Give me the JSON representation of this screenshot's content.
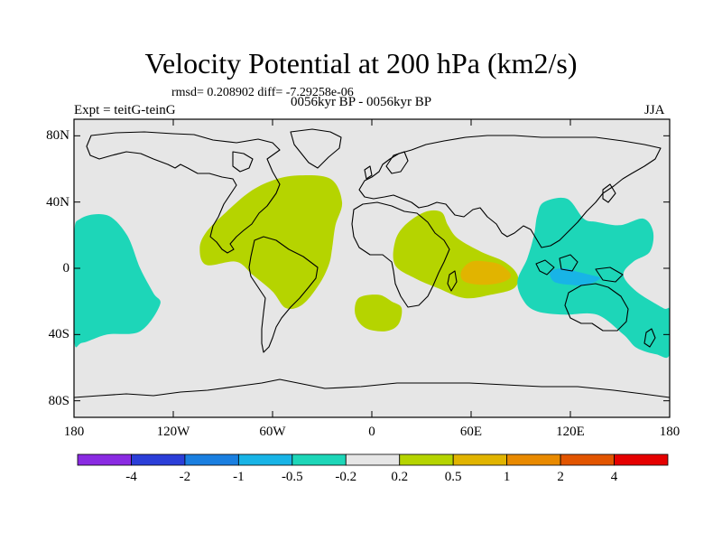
{
  "chart_data": {
    "type": "heatmap",
    "title": "Velocity Potential at 200 hPa (km2/s)",
    "stats": "rmsd= 0.208902 diff= -7.29258e-06",
    "experiment": "Expt = teitG-teinG",
    "period": "0056kyr BP - 0056kyr BP",
    "season": "JJA",
    "x_range": [
      -180,
      180
    ],
    "y_range": [
      -90,
      90
    ],
    "y_ticks": [
      {
        "value": 80,
        "label": "80N"
      },
      {
        "value": 40,
        "label": "40N"
      },
      {
        "value": 0,
        "label": "0"
      },
      {
        "value": -40,
        "label": "40S"
      },
      {
        "value": -80,
        "label": "80S"
      }
    ],
    "x_ticks": [
      {
        "value": -180,
        "label": "180"
      },
      {
        "value": -120,
        "label": "120W"
      },
      {
        "value": -60,
        "label": "60W"
      },
      {
        "value": 0,
        "label": "0"
      },
      {
        "value": 60,
        "label": "60E"
      },
      {
        "value": 120,
        "label": "120E"
      },
      {
        "value": 180,
        "label": "180"
      }
    ],
    "colorbar": {
      "colors": [
        "#8a2be2",
        "#2b3ed8",
        "#1a7fe0",
        "#18b4e6",
        "#1dd6b8",
        "#e6e6e6",
        "#b5d400",
        "#e1b400",
        "#e98a00",
        "#e25500",
        "#e50000"
      ],
      "labels": [
        "-4",
        "-2",
        "-1",
        "-0.5",
        "-0.2",
        "0.2",
        "0.5",
        "1",
        "2",
        "4"
      ]
    },
    "background_color": "#e6e6e6",
    "regions": [
      {
        "name": "central-pacific-negative",
        "level": "-0.2 to -0.5",
        "color": "#1dd6b8",
        "points": [
          [
            -176,
            30
          ],
          [
            -160,
            32
          ],
          [
            -148,
            20
          ],
          [
            -140,
            0
          ],
          [
            -132,
            -15
          ],
          [
            -128,
            -22
          ],
          [
            -140,
            -38
          ],
          [
            -160,
            -40
          ],
          [
            -175,
            -45
          ],
          [
            -180,
            -42
          ],
          [
            -180,
            18
          ]
        ]
      },
      {
        "name": "atlantic-positive",
        "level": "0.2 to 0.5",
        "color": "#b5d400",
        "points": [
          [
            -100,
            22
          ],
          [
            -88,
            34
          ],
          [
            -74,
            46
          ],
          [
            -60,
            53
          ],
          [
            -45,
            56
          ],
          [
            -25,
            54
          ],
          [
            -18,
            40
          ],
          [
            -22,
            26
          ],
          [
            -24,
            12
          ],
          [
            -26,
            2
          ],
          [
            -32,
            -10
          ],
          [
            -42,
            -22
          ],
          [
            -52,
            -24
          ],
          [
            -60,
            -14
          ],
          [
            -72,
            -4
          ],
          [
            -82,
            4
          ],
          [
            -100,
            2
          ],
          [
            -104,
            12
          ]
        ]
      },
      {
        "name": "south-atlantic-positive",
        "level": "0.2 to 0.5",
        "color": "#b5d400",
        "points": [
          [
            -8,
            -18
          ],
          [
            4,
            -16
          ],
          [
            12,
            -20
          ],
          [
            18,
            -24
          ],
          [
            16,
            -34
          ],
          [
            8,
            -38
          ],
          [
            -4,
            -36
          ],
          [
            -10,
            -28
          ]
        ]
      },
      {
        "name": "africa-indian-positive",
        "level": "0.2 to 0.5",
        "color": "#b5d400",
        "points": [
          [
            14,
            16
          ],
          [
            20,
            26
          ],
          [
            32,
            34
          ],
          [
            42,
            34
          ],
          [
            46,
            26
          ],
          [
            52,
            18
          ],
          [
            66,
            10
          ],
          [
            80,
            4
          ],
          [
            88,
            -4
          ],
          [
            86,
            -12
          ],
          [
            72,
            -16
          ],
          [
            56,
            -18
          ],
          [
            40,
            -12
          ],
          [
            26,
            -6
          ],
          [
            14,
            2
          ]
        ]
      },
      {
        "name": "indian-ocean-moderate",
        "level": "0.5 to 1",
        "color": "#e1b400",
        "points": [
          [
            54,
            -2
          ],
          [
            60,
            4
          ],
          [
            70,
            4
          ],
          [
            78,
            2
          ],
          [
            84,
            -4
          ],
          [
            80,
            -8
          ],
          [
            68,
            -10
          ],
          [
            56,
            -8
          ]
        ]
      },
      {
        "name": "maritime-continent-negative",
        "level": "-0.2 to -0.5",
        "color": "#1dd6b8",
        "points": [
          [
            104,
            40
          ],
          [
            118,
            42
          ],
          [
            128,
            30
          ],
          [
            136,
            28
          ],
          [
            150,
            26
          ],
          [
            164,
            30
          ],
          [
            170,
            22
          ],
          [
            168,
            10
          ],
          [
            158,
            4
          ],
          [
            152,
            -4
          ],
          [
            160,
            -14
          ],
          [
            176,
            -24
          ],
          [
            180,
            -26
          ],
          [
            180,
            -52
          ],
          [
            172,
            -52
          ],
          [
            160,
            -48
          ],
          [
            152,
            -40
          ],
          [
            136,
            -28
          ],
          [
            116,
            -28
          ],
          [
            100,
            -26
          ],
          [
            92,
            -20
          ],
          [
            88,
            -8
          ],
          [
            94,
            6
          ],
          [
            98,
            20
          ],
          [
            100,
            32
          ]
        ]
      },
      {
        "name": "maritime-continent-core",
        "level": "-0.5 to -1",
        "color": "#18b4e6",
        "points": [
          [
            108,
            -2
          ],
          [
            116,
            0
          ],
          [
            124,
            -2
          ],
          [
            132,
            -4
          ],
          [
            138,
            -6
          ],
          [
            130,
            -10
          ],
          [
            120,
            -10
          ],
          [
            110,
            -8
          ]
        ]
      }
    ]
  }
}
